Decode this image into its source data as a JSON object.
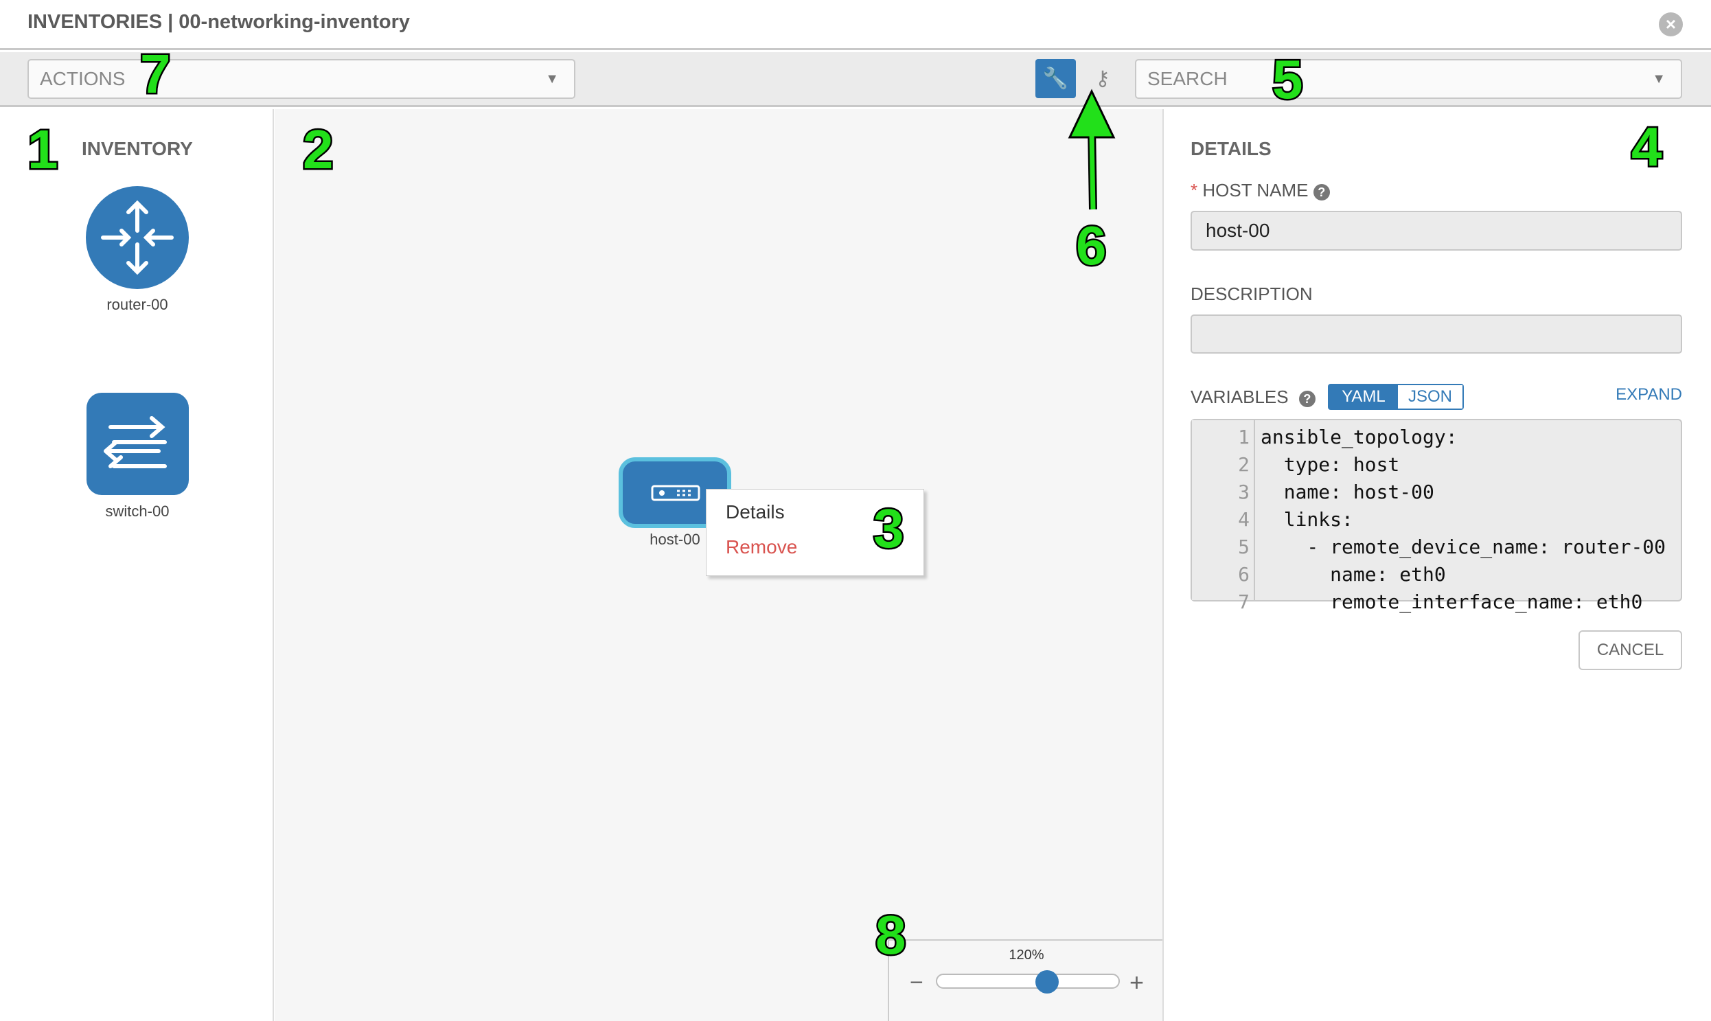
{
  "header": {
    "title": "INVENTORIES | 00-networking-inventory",
    "close_icon": "close-circle-icon"
  },
  "toolbar": {
    "actions_placeholder": "ACTIONS",
    "search_placeholder": "SEARCH",
    "wrench_icon": "wrench-icon",
    "key_icon": "key-icon"
  },
  "inventory": {
    "title": "INVENTORY",
    "items": [
      {
        "label": "router-00",
        "icon": "router-icon"
      },
      {
        "label": "switch-00",
        "icon": "switch-icon"
      }
    ]
  },
  "canvas": {
    "node": {
      "label": "host-00",
      "icon": "host-icon"
    },
    "context_menu": {
      "details": "Details",
      "remove": "Remove"
    },
    "zoom": {
      "label": "120%",
      "value_percent": 120
    }
  },
  "details": {
    "title": "DETAILS",
    "required_mark": "*",
    "host_name_label": "HOST NAME",
    "host_name_value": "host-00",
    "description_label": "DESCRIPTION",
    "description_value": "",
    "variables_label": "VARIABLES",
    "yaml": "YAML",
    "json": "JSON",
    "expand": "EXPAND",
    "cancel": "CANCEL",
    "code_lines": [
      {
        "n": "1",
        "t": "ansible_topology:"
      },
      {
        "n": "2",
        "t": "  type: host"
      },
      {
        "n": "3",
        "t": "  name: host-00"
      },
      {
        "n": "4",
        "t": "  links:"
      },
      {
        "n": "5",
        "t": "    - remote_device_name: router-00"
      },
      {
        "n": "6",
        "t": "      name: eth0"
      },
      {
        "n": "7",
        "t": "      remote_interface_name: eth0"
      }
    ]
  },
  "annotations": [
    "1",
    "2",
    "3",
    "4",
    "5",
    "6",
    "7",
    "8"
  ],
  "colors": {
    "accent": "#337ab7",
    "danger": "#d9534f",
    "annotation": "#22e01a"
  }
}
